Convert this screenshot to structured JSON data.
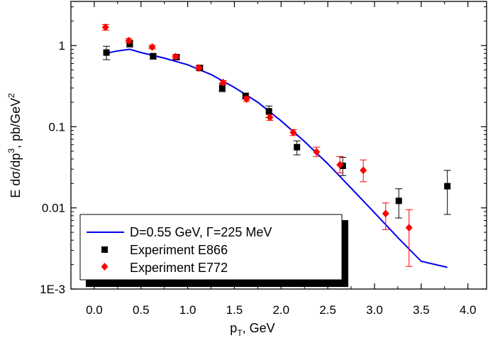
{
  "chart_data": {
    "type": "scatter",
    "xlabel": "p",
    "xlabel_sub": "T",
    "xlabel_suffix": ", GeV",
    "ylabel_parts": {
      "a": "E d",
      "sigma": "σ",
      "b": "/dp",
      "sup3": "3",
      "c": ", pb/GeV",
      "sup2": "2"
    },
    "xlim": [
      -0.25,
      4.2
    ],
    "ylim": [
      0.001,
      3.5
    ],
    "yscale": "log",
    "grid": false,
    "legend_position": "bottom-left",
    "x_ticks": [
      {
        "v": 0.0,
        "label": "0.0"
      },
      {
        "v": 0.5,
        "label": "0.5"
      },
      {
        "v": 1.0,
        "label": "1.0"
      },
      {
        "v": 1.5,
        "label": "1.5"
      },
      {
        "v": 2.0,
        "label": "2.0"
      },
      {
        "v": 2.5,
        "label": "2.5"
      },
      {
        "v": 3.0,
        "label": "3.0"
      },
      {
        "v": 3.5,
        "label": "3.5"
      },
      {
        "v": 4.0,
        "label": "4.0"
      }
    ],
    "y_ticks": [
      {
        "v": 1,
        "label": "1"
      },
      {
        "v": 0.1,
        "label": "0.1"
      },
      {
        "v": 0.01,
        "label": "0.01"
      },
      {
        "v": 0.001,
        "label": "1E-3"
      }
    ],
    "curve": {
      "name_parts": {
        "a": "D=0.55 GeV, ",
        "gamma": "Γ",
        "b": "=225 MeV"
      },
      "color": "#0000ee",
      "points": [
        [
          0.12,
          0.8
        ],
        [
          0.25,
          0.86
        ],
        [
          0.38,
          0.9
        ],
        [
          0.5,
          0.82
        ],
        [
          0.75,
          0.7
        ],
        [
          1.0,
          0.58
        ],
        [
          1.25,
          0.44
        ],
        [
          1.5,
          0.305
        ],
        [
          1.75,
          0.2
        ],
        [
          2.0,
          0.118
        ],
        [
          2.25,
          0.066
        ],
        [
          2.5,
          0.035
        ],
        [
          2.75,
          0.0175
        ],
        [
          3.0,
          0.0087
        ],
        [
          3.25,
          0.0043
        ],
        [
          3.5,
          0.0022
        ],
        [
          3.78,
          0.00185
        ]
      ]
    },
    "series": [
      {
        "name": "Experiment E866",
        "marker": "square",
        "color": "#000000",
        "points": [
          {
            "x": 0.13,
            "y": 0.82,
            "lo": 0.67,
            "hi": 0.98
          },
          {
            "x": 0.38,
            "y": 1.06,
            "lo": 0.96,
            "hi": 1.16
          },
          {
            "x": 0.63,
            "y": 0.74,
            "lo": 0.68,
            "hi": 0.8
          },
          {
            "x": 0.88,
            "y": 0.72,
            "lo": 0.67,
            "hi": 0.77
          },
          {
            "x": 1.13,
            "y": 0.53,
            "lo": 0.49,
            "hi": 0.57
          },
          {
            "x": 1.37,
            "y": 0.3,
            "lo": 0.27,
            "hi": 0.34
          },
          {
            "x": 1.62,
            "y": 0.24,
            "lo": 0.22,
            "hi": 0.26
          },
          {
            "x": 1.87,
            "y": 0.155,
            "lo": 0.13,
            "hi": 0.18
          },
          {
            "x": 2.17,
            "y": 0.056,
            "lo": 0.045,
            "hi": 0.067
          },
          {
            "x": 2.66,
            "y": 0.033,
            "lo": 0.025,
            "hi": 0.042
          },
          {
            "x": 3.26,
            "y": 0.0122,
            "lo": 0.0075,
            "hi": 0.0172
          },
          {
            "x": 3.78,
            "y": 0.0185,
            "lo": 0.0083,
            "hi": 0.029
          }
        ]
      },
      {
        "name": "Experiment E772",
        "marker": "diamond",
        "color": "#ff0000",
        "points": [
          {
            "x": 0.12,
            "y": 1.68,
            "lo": 1.55,
            "hi": 1.82
          },
          {
            "x": 0.37,
            "y": 1.15,
            "lo": 1.08,
            "hi": 1.22
          },
          {
            "x": 0.62,
            "y": 0.96,
            "lo": 0.91,
            "hi": 1.01
          },
          {
            "x": 0.87,
            "y": 0.73,
            "lo": 0.69,
            "hi": 0.77
          },
          {
            "x": 1.12,
            "y": 0.53,
            "lo": 0.5,
            "hi": 0.56
          },
          {
            "x": 1.38,
            "y": 0.35,
            "lo": 0.33,
            "hi": 0.37
          },
          {
            "x": 1.63,
            "y": 0.22,
            "lo": 0.205,
            "hi": 0.235
          },
          {
            "x": 1.88,
            "y": 0.13,
            "lo": 0.12,
            "hi": 0.14
          },
          {
            "x": 2.13,
            "y": 0.085,
            "lo": 0.078,
            "hi": 0.092
          },
          {
            "x": 2.38,
            "y": 0.049,
            "lo": 0.043,
            "hi": 0.056
          },
          {
            "x": 2.63,
            "y": 0.034,
            "lo": 0.027,
            "hi": 0.043
          },
          {
            "x": 2.88,
            "y": 0.029,
            "lo": 0.021,
            "hi": 0.039
          },
          {
            "x": 3.12,
            "y": 0.0085,
            "lo": 0.0054,
            "hi": 0.0115
          },
          {
            "x": 3.37,
            "y": 0.0057,
            "lo": 0.0019,
            "hi": 0.0095
          }
        ]
      }
    ]
  }
}
